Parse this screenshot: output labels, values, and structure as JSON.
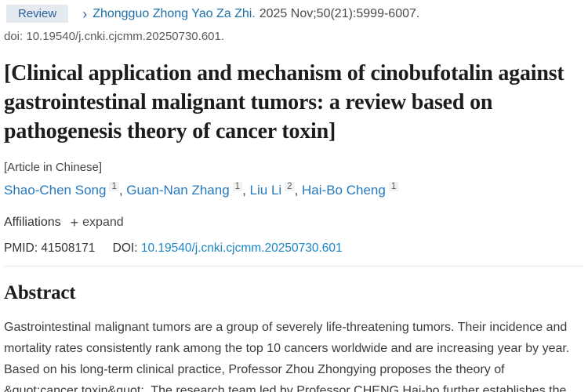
{
  "badge": {
    "label": "Review"
  },
  "citation": {
    "journal": "Zhongguo Zhong Yao Za Zhi.",
    "details": "2025 Nov;50(21):5999-6007.",
    "doi_line": "doi: 10.19540/j.cnki.cjcmm.20250730.601."
  },
  "title": "[Clinical application and mechanism of cinobufotalin against gastrointestinal malignant tumors: a review based on pathogenesis theory of cancer toxin]",
  "language_note": "[Article in Chinese]",
  "authors": [
    {
      "name": "Shao-Chen Song",
      "sup": "1"
    },
    {
      "name": "Guan-Nan Zhang",
      "sup": "1"
    },
    {
      "name": "Liu Li",
      "sup": "2"
    },
    {
      "name": "Hai-Bo Cheng",
      "sup": "1"
    }
  ],
  "affiliations": {
    "label": "Affiliations",
    "expand_icon": "+",
    "expand_label": "expand"
  },
  "identifiers": {
    "pmid_label": "PMID:",
    "pmid": "41508171",
    "doi_label": "DOI:",
    "doi": "10.19540/j.cnki.cjcmm.20250730.601"
  },
  "abstract": {
    "heading": "Abstract",
    "text": "Gastrointestinal malignant tumors are a group of severely life-threatening tumors. Their incidence and mortality rates consistently rank among the top 10 cancers worldwide and are increasing year by year. Based on his long-term clinical practice, Professor Zhou Zhongying proposes the theory of &quot;cancer toxin&quot;. The research team led by Professor CHENG Hai-bo further establishes the"
  },
  "colors": {
    "badge_bg": "#e5eaf1",
    "badge_text": "#2a5d94",
    "journal_link": "#1d6fa8",
    "author_link": "#2779bd",
    "doi_link": "#1b85c5",
    "title_text": "#1c1c1c",
    "body_text": "#3c3c3c"
  }
}
